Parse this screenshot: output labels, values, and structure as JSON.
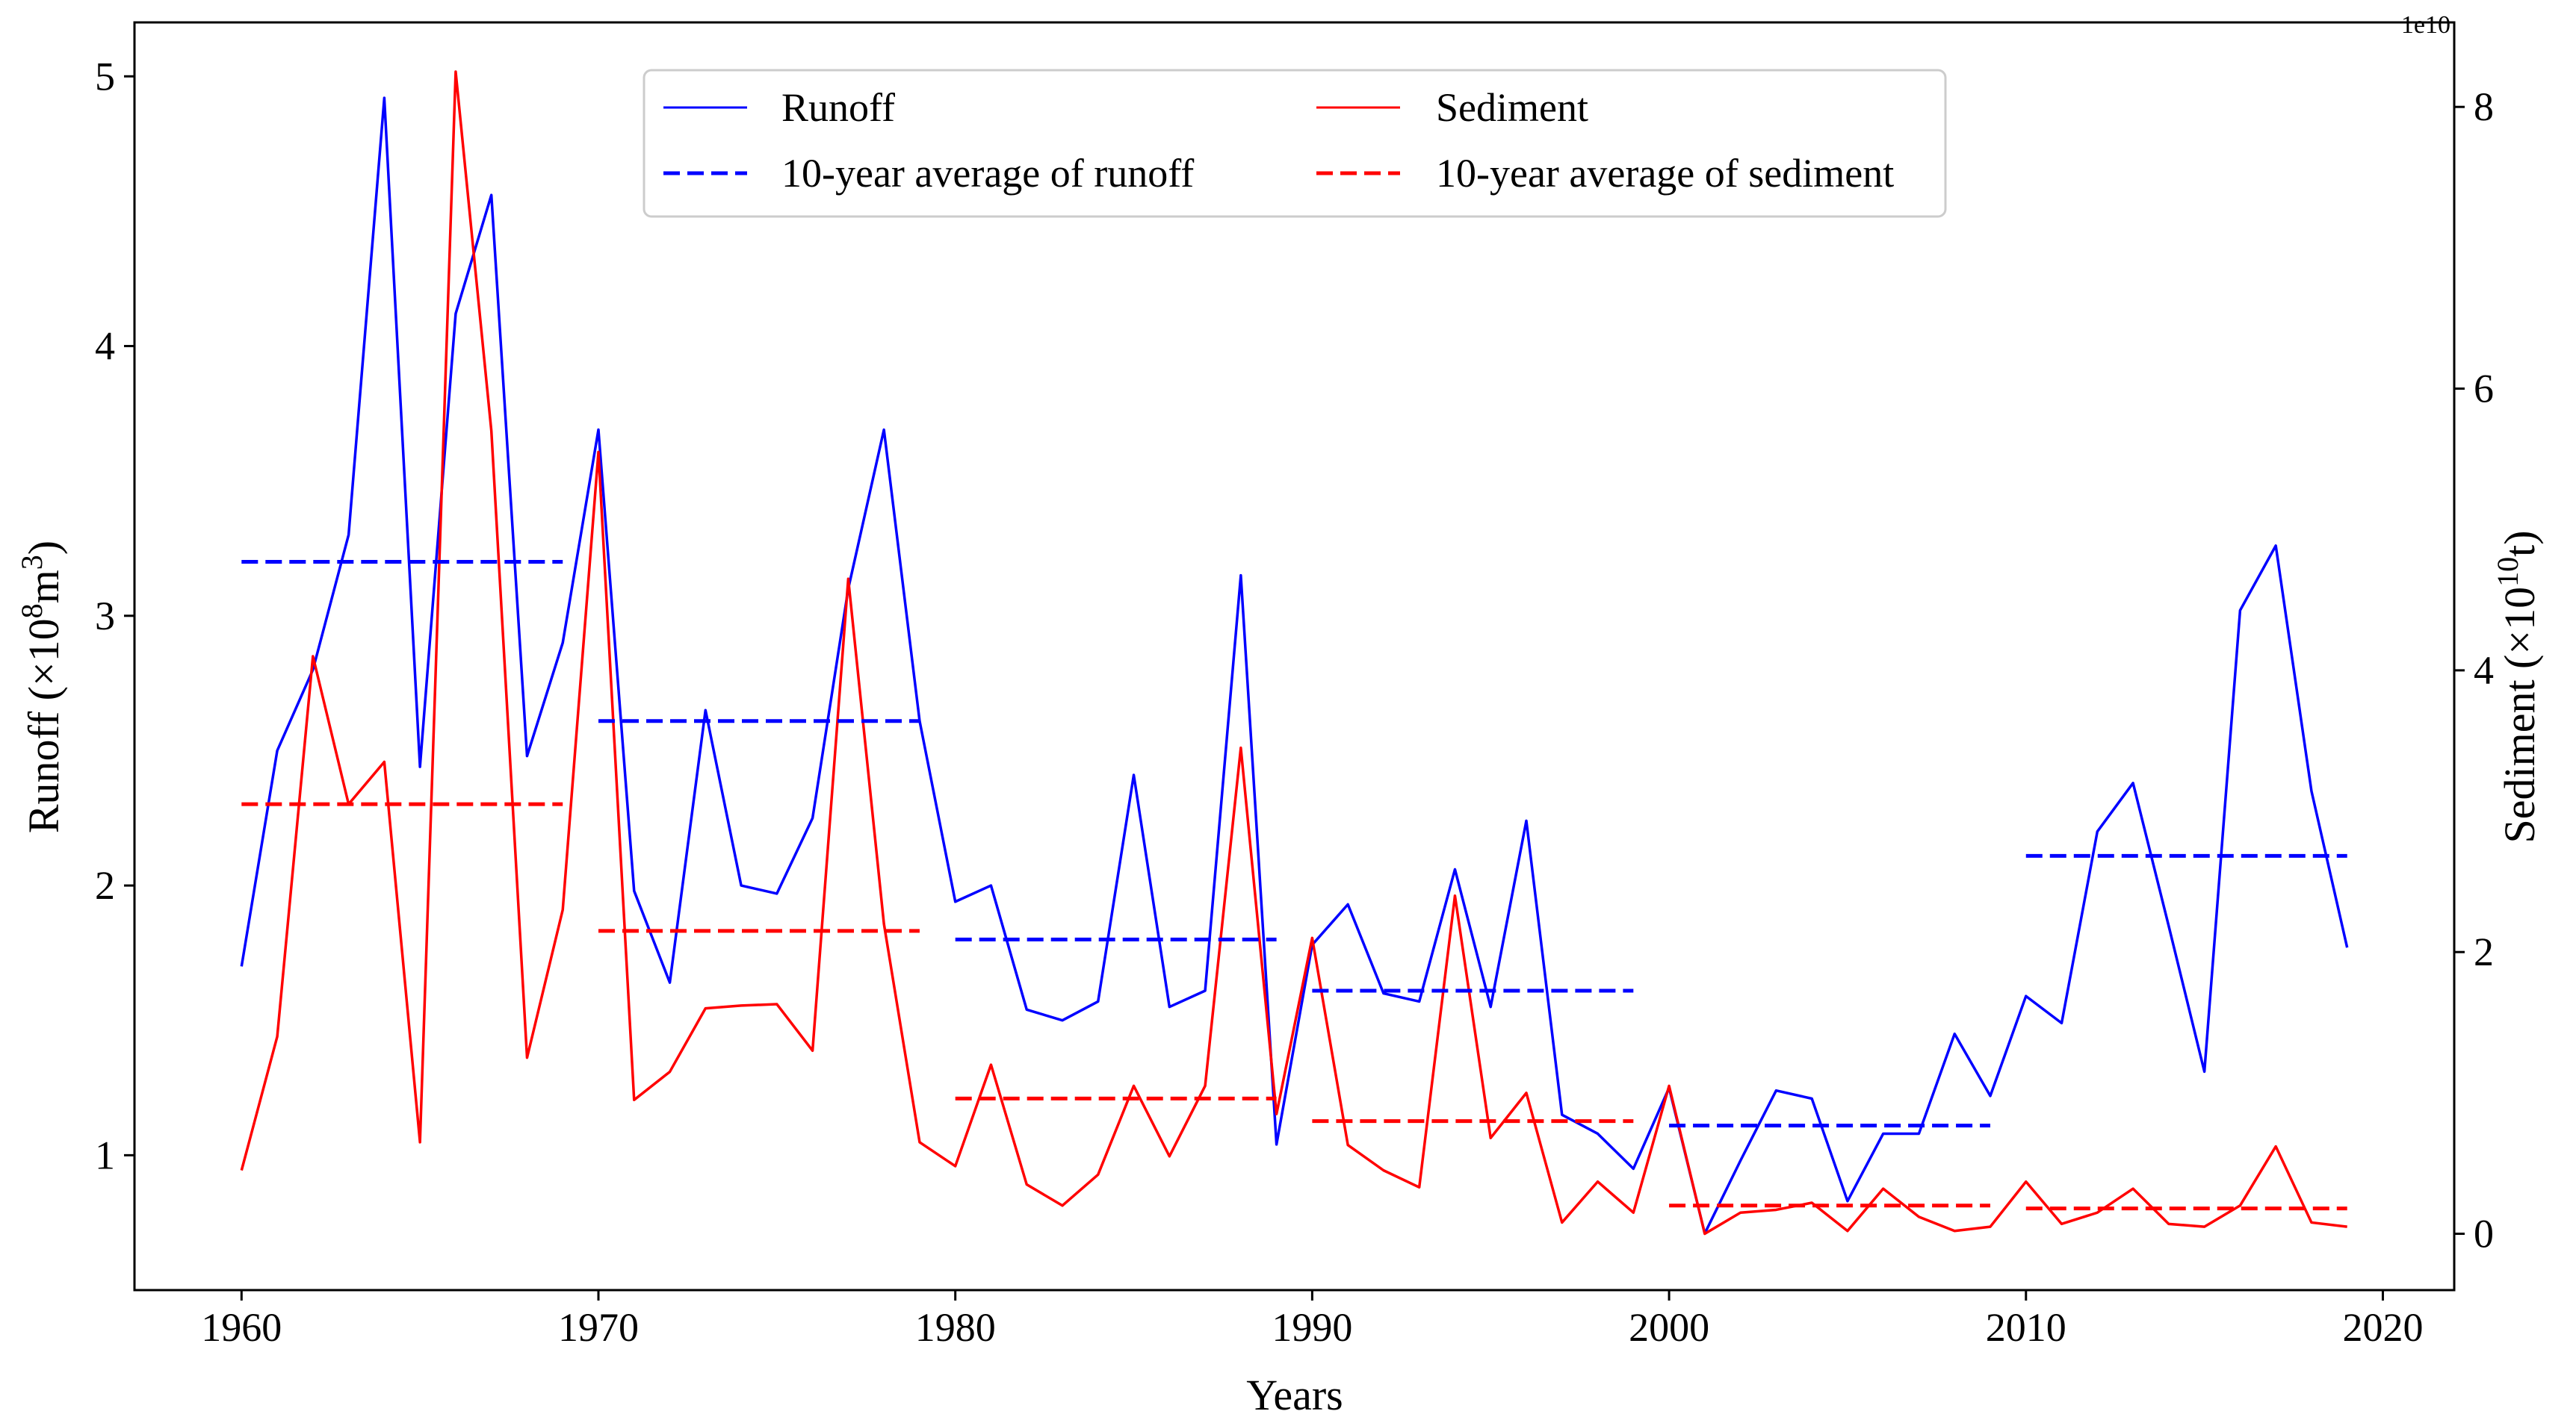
{
  "chart_data": {
    "type": "line",
    "xlabel": "Years",
    "ylabel_left": {
      "main": "Runoff (×10",
      "exp": "8",
      "unit": "m",
      "unit_exp": "3",
      "close": ")"
    },
    "ylabel_right": {
      "main": "Sediment (×10",
      "exp": "10",
      "unit": "t",
      "close": ")"
    },
    "right_axis_offset_label": "1e10",
    "xlim": [
      1957,
      2022
    ],
    "ylim_left": [
      0.5,
      5.2
    ],
    "ylim_right": [
      -0.4,
      8.6
    ],
    "x_ticks": [
      1960,
      1970,
      1980,
      1990,
      2000,
      2010,
      2020
    ],
    "y_ticks_left": [
      1,
      2,
      3,
      4,
      5
    ],
    "y_ticks_right": [
      0,
      2,
      4,
      6,
      8
    ],
    "x": [
      1960,
      1961,
      1962,
      1963,
      1964,
      1965,
      1966,
      1967,
      1968,
      1969,
      1970,
      1971,
      1972,
      1973,
      1974,
      1975,
      1976,
      1977,
      1978,
      1979,
      1980,
      1981,
      1982,
      1983,
      1984,
      1985,
      1986,
      1987,
      1988,
      1989,
      1990,
      1991,
      1992,
      1993,
      1994,
      1995,
      1996,
      1997,
      1998,
      1999,
      2000,
      2001,
      2002,
      2003,
      2004,
      2005,
      2006,
      2007,
      2008,
      2009,
      2010,
      2011,
      2012,
      2013,
      2014,
      2015,
      2016,
      2017,
      2018,
      2019
    ],
    "series": [
      {
        "name": "Runoff",
        "axis": "left",
        "color": "#0000ff",
        "values": [
          1.7,
          2.5,
          2.8,
          3.3,
          4.92,
          2.44,
          4.12,
          4.56,
          2.48,
          2.9,
          3.69,
          1.98,
          1.64,
          2.65,
          2.0,
          1.97,
          2.25,
          3.1,
          3.69,
          2.61,
          1.94,
          2.0,
          1.54,
          1.5,
          1.57,
          2.41,
          1.55,
          1.61,
          3.15,
          1.04,
          1.78,
          1.93,
          1.6,
          1.57,
          2.06,
          1.55,
          2.24,
          1.15,
          1.08,
          0.95,
          1.25,
          0.71,
          0.98,
          1.24,
          1.21,
          0.83,
          1.08,
          1.08,
          1.45,
          1.22,
          1.59,
          1.49,
          2.2,
          2.38,
          1.85,
          1.31,
          3.02,
          3.26,
          2.35,
          1.77
        ]
      },
      {
        "name": "Sediment",
        "axis": "right",
        "color": "#ff0000",
        "values": [
          0.45,
          1.4,
          4.1,
          3.05,
          3.35,
          0.65,
          8.25,
          5.7,
          1.25,
          2.3,
          5.55,
          0.95,
          1.15,
          1.6,
          1.62,
          1.63,
          1.3,
          4.65,
          2.2,
          0.65,
          0.48,
          1.2,
          0.35,
          0.2,
          0.42,
          1.05,
          0.55,
          1.05,
          3.45,
          0.85,
          2.1,
          0.63,
          0.45,
          0.33,
          2.4,
          0.68,
          1.0,
          0.08,
          0.37,
          0.15,
          1.05,
          0.0,
          0.15,
          0.17,
          0.22,
          0.02,
          0.32,
          0.12,
          0.02,
          0.05,
          0.37,
          0.07,
          0.15,
          0.32,
          0.07,
          0.05,
          0.2,
          0.62,
          0.08,
          0.05
        ]
      },
      {
        "name": "10-year average of runoff",
        "axis": "left",
        "color": "#0000ff",
        "dashed": true,
        "segments": [
          {
            "x": [
              1960,
              1969
            ],
            "value": 3.2
          },
          {
            "x": [
              1970,
              1979
            ],
            "value": 2.61
          },
          {
            "x": [
              1980,
              1989
            ],
            "value": 1.8
          },
          {
            "x": [
              1990,
              1999
            ],
            "value": 1.61
          },
          {
            "x": [
              2000,
              2009
            ],
            "value": 1.11
          },
          {
            "x": [
              2010,
              2019
            ],
            "value": 2.11
          }
        ]
      },
      {
        "name": "10-year average of sediment",
        "axis": "right",
        "color": "#ff0000",
        "dashed": true,
        "segments": [
          {
            "x": [
              1960,
              1969
            ],
            "value": 3.05
          },
          {
            "x": [
              1970,
              1979
            ],
            "value": 2.15
          },
          {
            "x": [
              1980,
              1989
            ],
            "value": 0.96
          },
          {
            "x": [
              1990,
              1999
            ],
            "value": 0.8
          },
          {
            "x": [
              2000,
              2009
            ],
            "value": 0.2
          },
          {
            "x": [
              2010,
              2019
            ],
            "value": 0.18
          }
        ]
      }
    ],
    "legend": {
      "placement": "top-center",
      "entries": [
        "Runoff",
        "Sediment",
        "10-year average of runoff",
        "10-year average of sediment"
      ]
    }
  }
}
